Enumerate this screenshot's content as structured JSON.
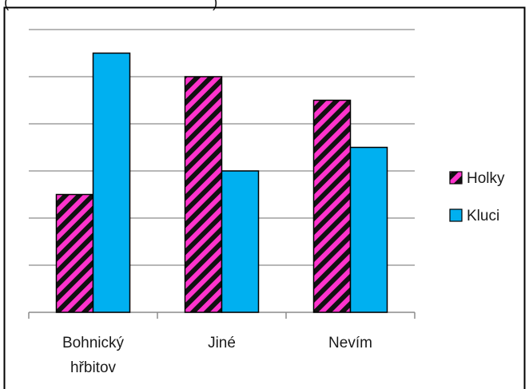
{
  "colors": {
    "holky_fill": "#ff33cc",
    "holky_stripe": "#111111",
    "kluci_fill": "#00b0f0",
    "gridline": "#8c8c8c",
    "frame": "#000000"
  },
  "chart_data": {
    "type": "bar",
    "title": "",
    "xlabel": "",
    "ylabel": "",
    "categories": [
      [
        "Bohnický",
        "hřbitov"
      ],
      [
        "Jiné"
      ],
      [
        "Nevím"
      ]
    ],
    "series": [
      {
        "name": "Holky",
        "values": [
          2.5,
          5.0,
          4.5
        ],
        "pattern": "diagonal-stripes"
      },
      {
        "name": "Kluci",
        "values": [
          5.5,
          3.0,
          3.5
        ],
        "pattern": "solid"
      }
    ],
    "ylim": [
      0,
      6
    ],
    "y_tick_labels_shown": false,
    "grid": true,
    "legend_position": "right"
  }
}
